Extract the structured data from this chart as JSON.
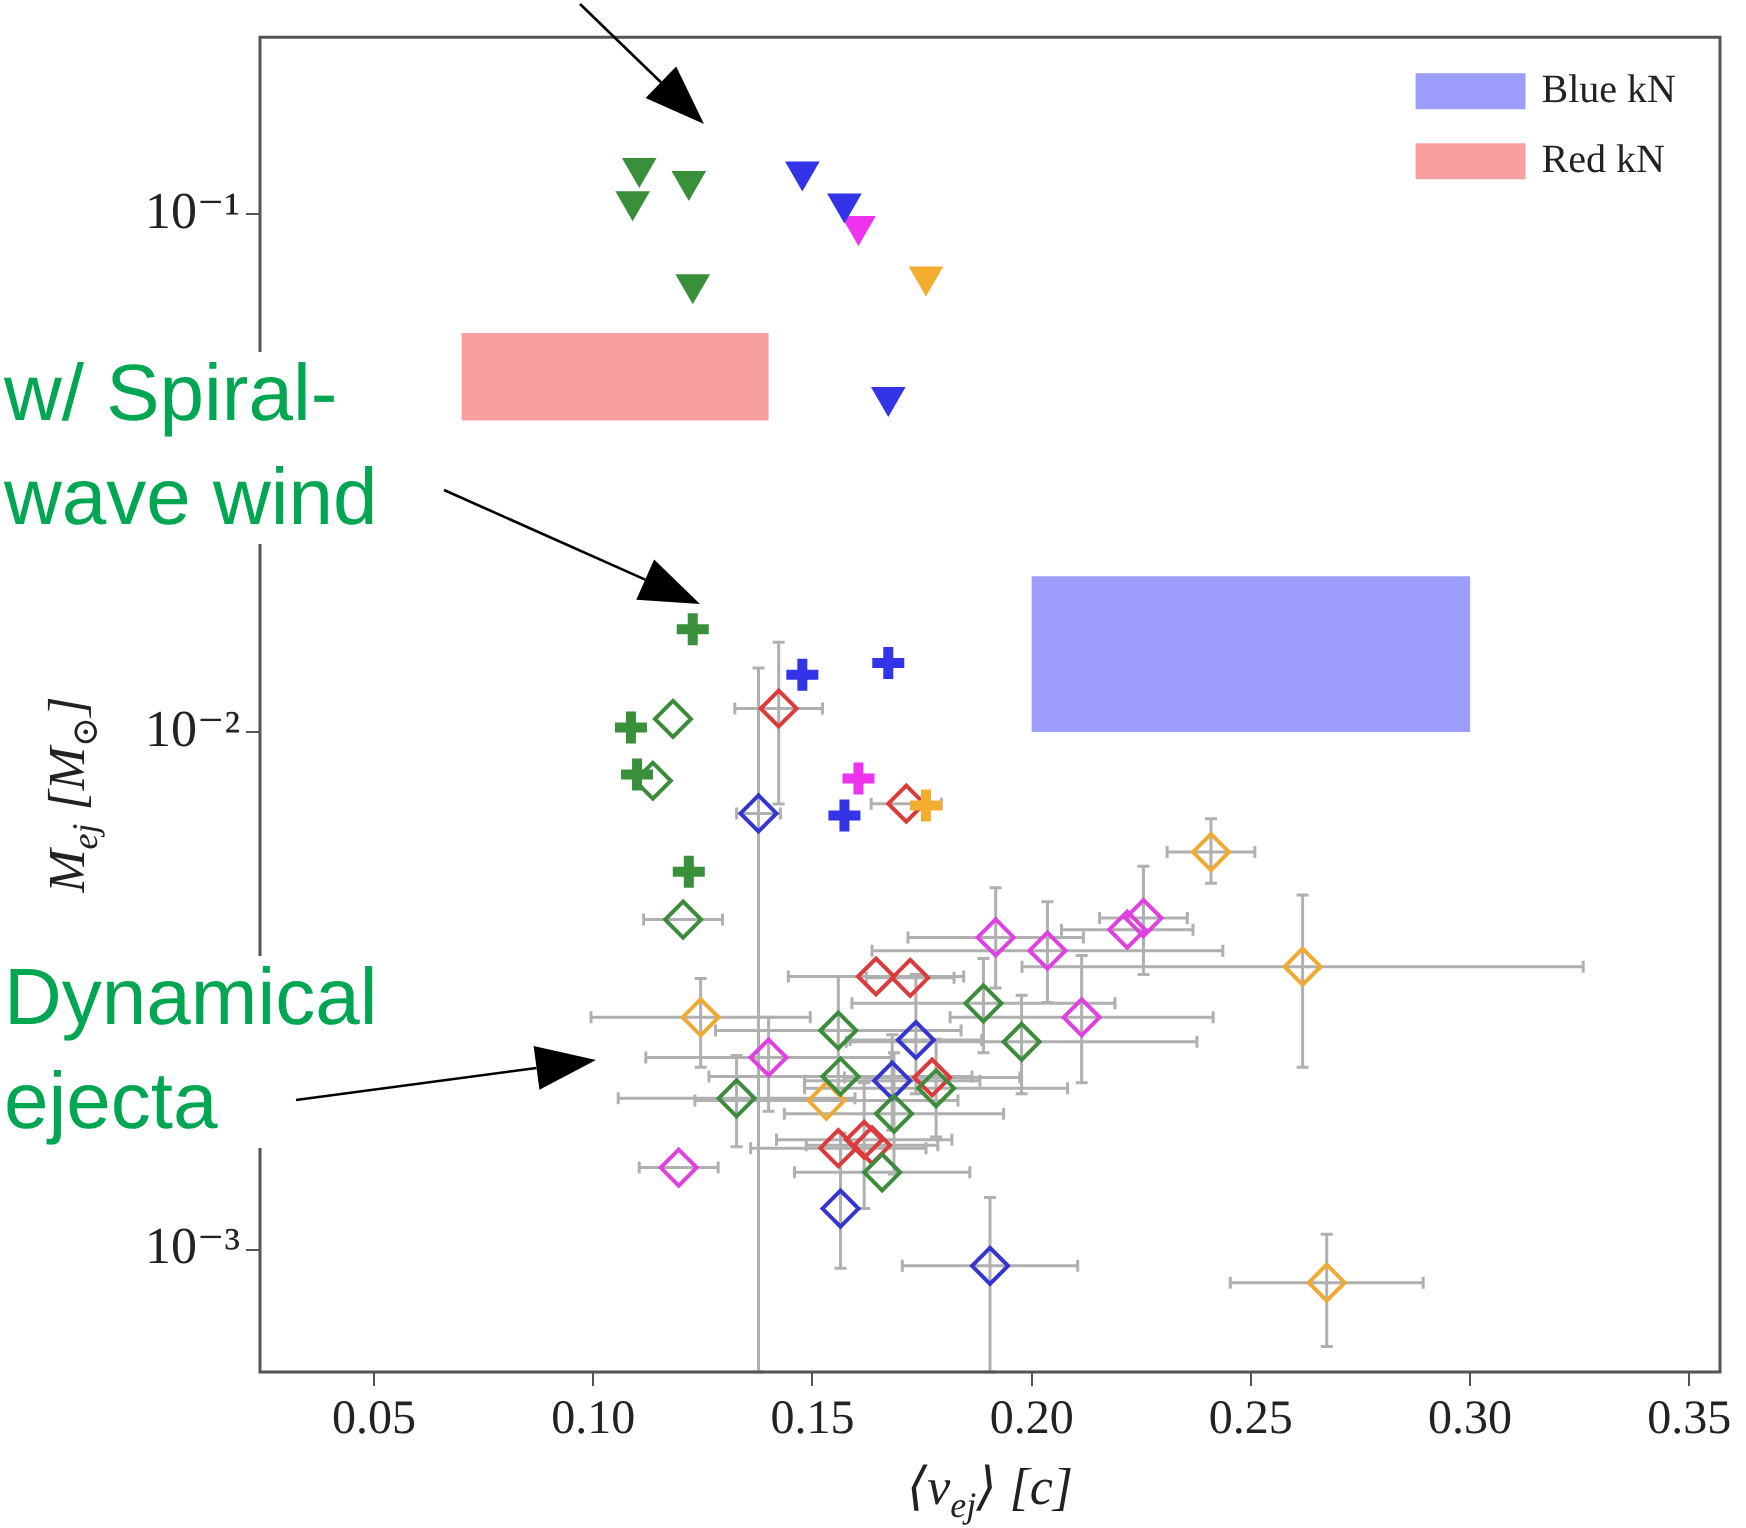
{
  "chart_data": {
    "type": "scatter",
    "xlabel": "⟨v$_{ej}$⟩ [c]",
    "ylabel": "M$_{ej}$ [M$_{⊙}$]",
    "log": "y",
    "grid": false,
    "legend": "top right",
    "xlim": [
      0.024,
      0.357
    ],
    "xticks": [
      0.05,
      {
        "value": 0.1,
        "label": "0.10"
      },
      0.15,
      {
        "value": 0.2,
        "label": "0.20"
      },
      0.25,
      {
        "value": 0.3,
        "label": "0.30"
      },
      0.35
    ],
    "ylim": [
      0.00058,
      0.22
    ],
    "yticks": [
      {
        "value": 0.001,
        "label": "10⁻³"
      },
      {
        "value": 0.01,
        "label": "10⁻²"
      },
      {
        "value": 0.1,
        "label": "10⁻¹"
      }
    ],
    "annotations": [
      "w/ Spiral-\nwave wind",
      "Dynamical\nejecta"
    ],
    "series": [
      {
        "type": "area",
        "name": "Blue kN",
        "color": "#9d9dfb",
        "x": [
          0.2,
          0.3
        ],
        "values": [
          null,
          null
        ],
        "lower": [
          0.01,
          0.01
        ],
        "upper": [
          0.02,
          0.02
        ]
      },
      {
        "type": "area",
        "name": "Red kN",
        "color": "#f8a0a0",
        "x": [
          0.07,
          0.14
        ],
        "values": [
          null,
          null
        ],
        "lower": [
          0.04,
          0.04
        ],
        "upper": [
          0.059,
          0.059
        ]
      },
      {
        "marker": "triangle",
        "color": "#3a8f3a",
        "x": [
          0.1105,
          0.109,
          0.1218,
          0.1227
        ],
        "values": [
          0.123,
          0.106,
          0.116,
          0.0733
        ]
      },
      {
        "marker": "triangle",
        "color": "#3333e8",
        "x": [
          0.1477,
          0.1573,
          0.1673
        ],
        "values": [
          0.121,
          0.105,
          0.0444
        ]
      },
      {
        "marker": "triangle",
        "color": "#ee33ee",
        "x": [
          0.1605
        ],
        "values": [
          0.095
        ]
      },
      {
        "marker": "triangle",
        "color": "#f5ad30",
        "x": [
          0.1759
        ],
        "values": [
          0.0759
        ]
      },
      {
        "marker": "cross",
        "color": "#3a8f3a",
        "x": [
          0.1227,
          0.1086,
          0.11,
          0.1218
        ],
        "values": [
          0.0158,
          0.0102,
          0.00828,
          0.00537
        ]
      },
      {
        "marker": "cross",
        "color": "#3333e8",
        "x": [
          0.1477,
          0.1673,
          0.1573
        ],
        "values": [
          0.0129,
          0.0136,
          0.0069
        ]
      },
      {
        "marker": "cross",
        "color": "#ee33ee",
        "x": [
          0.1605
        ],
        "values": [
          0.00813
        ]
      },
      {
        "marker": "cross",
        "color": "#f5ad30",
        "x": [
          0.1759
        ],
        "values": [
          0.00721
        ]
      },
      {
        "marker": "diamond",
        "color": "#3c8c3c",
        "x": [
          0.1182,
          0.1136,
          0.1205,
          0.1327,
          0.1559,
          0.1564,
          0.1659,
          0.1782,
          0.1686,
          0.189,
          0.1977
        ],
        "values": [
          0.0106,
          0.00805,
          0.00434,
          0.00196,
          0.00265,
          0.00216,
          0.00141,
          0.00205,
          0.00183,
          0.00299,
          0.00252
        ],
        "xerrors": [
          null,
          null,
          0.009,
          0.027,
          0.028,
          0.03,
          0.02,
          0.03,
          0.025,
          0.03,
          0.04
        ],
        "errors": [
          null,
          null,
          null,
          [
            0.00158,
            0.00237
          ],
          [
            0.00205,
            0.00337
          ],
          null,
          null,
          [
            0.00165,
            0.00255
          ],
          [
            0.0014,
            0.0024
          ],
          [
            0.0024,
            0.00365
          ],
          [
            0.002,
            0.0031
          ]
        ]
      },
      {
        "marker": "diamond",
        "color": "#3535d0",
        "x": [
          0.1377,
          0.1736,
          0.1682,
          0.1564,
          0.1905
        ],
        "values": [
          0.00696,
          0.00254,
          0.00212,
          0.0012,
          0.00093
        ],
        "xerrors": [
          0.005,
          0.015,
          0.02,
          null,
          0.02
        ],
        "errors": [
          [
            0.00058,
            0.0133
          ],
          [
            0.002,
            0.0034
          ],
          [
            0.0017,
            0.0026
          ],
          [
            0.00092,
            0.00168
          ],
          [
            0.00058,
            0.00126
          ]
        ]
      },
      {
        "marker": "diamond",
        "color": "#dd3b3b",
        "x": [
          0.1423,
          0.1714,
          0.1645,
          0.1723,
          0.1773,
          0.1559,
          0.1618,
          0.1636
        ],
        "values": [
          0.0111,
          0.00727,
          0.00337,
          0.00335,
          0.00215,
          0.00157,
          0.00163,
          0.00159
        ],
        "xerrors": [
          0.01,
          0.008,
          0.02,
          0.01,
          0.02,
          0.02,
          0.02,
          0.015
        ],
        "errors": [
          [
            0.00726,
            0.0149
          ],
          null,
          null,
          null,
          null,
          null,
          [
            0.0012,
            0.0021
          ],
          null
        ]
      },
      {
        "marker": "diamond",
        "color": "#e040e0",
        "x": [
          0.14,
          0.1195,
          0.1918,
          0.2036,
          0.2114,
          0.2218,
          0.2255
        ],
        "values": [
          0.00235,
          0.00144,
          0.00401,
          0.00378,
          0.00281,
          0.00415,
          0.00437
        ],
        "xerrors": [
          0.028,
          0.009,
          0.02,
          0.04,
          0.03,
          0.015,
          0.01
        ],
        "errors": [
          [
            0.00185,
            0.00281
          ],
          null,
          [
            0.0032,
            0.005
          ],
          [
            0.003,
            0.0047
          ],
          [
            0.0021,
            0.0037
          ],
          null,
          [
            0.0034,
            0.0055
          ]
        ]
      },
      {
        "marker": "diamond",
        "color": "#eeaa33",
        "x": [
          0.1245,
          0.1532,
          0.2409,
          0.2618,
          0.2673
        ],
        "values": [
          0.00281,
          0.00194,
          0.00586,
          0.00352,
          0.000863
        ],
        "xerrors": [
          0.025,
          0.03,
          0.01,
          0.064,
          0.022
        ],
        "errors": [
          [
            0.00225,
            0.00334
          ],
          null,
          [
            0.0051,
            0.0068
          ],
          [
            0.00225,
            0.00484
          ],
          [
            0.00065,
            0.00107
          ]
        ]
      }
    ]
  }
}
